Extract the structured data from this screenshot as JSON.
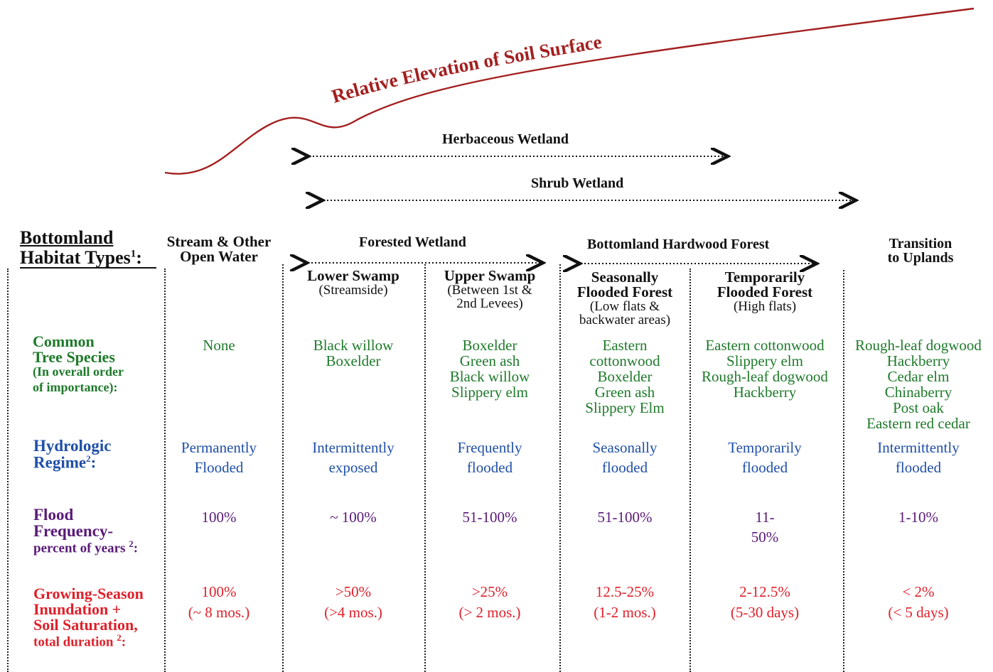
{
  "elevation_label": "Relative Elevation of Soil Surface",
  "spans": {
    "herbaceous": "Herbaceous Wetland",
    "shrub": "Shrub Wetland",
    "forested": "Forested Wetland",
    "bottomland_hardwood": "Bottomland Hardwood Forest",
    "transition": [
      "Transition",
      "to Uplands"
    ]
  },
  "header": {
    "title_line1": "Bottomland",
    "title_line2": "Habitat Types",
    "title_sup": "1",
    "title_suffix": ":"
  },
  "columns": [
    {
      "key": "stream",
      "title": [
        "Stream & Other",
        "Open Water"
      ],
      "subtitle": []
    },
    {
      "key": "lower_swamp",
      "title": [
        "Lower Swamp"
      ],
      "subtitle": [
        "(Streamside)"
      ]
    },
    {
      "key": "upper_swamp",
      "title": [
        "Upper Swamp"
      ],
      "subtitle": [
        "(Between 1st &",
        "2nd Levees)"
      ]
    },
    {
      "key": "seasonal",
      "title": [
        "Seasonally",
        "Flooded Forest"
      ],
      "subtitle": [
        "(Low flats &",
        "backwater areas)"
      ]
    },
    {
      "key": "temporary",
      "title": [
        "Temporarily",
        "Flooded Forest"
      ],
      "subtitle": [
        "(High flats)"
      ]
    },
    {
      "key": "transition",
      "title": [],
      "subtitle": []
    }
  ],
  "rows": {
    "species": {
      "label": [
        "Common",
        "Tree Species"
      ],
      "note": [
        "(In overall order",
        "of importance):"
      ],
      "values": [
        [
          "None"
        ],
        [
          "Black willow",
          "Boxelder"
        ],
        [
          "Boxelder",
          "Green ash",
          "Black willow",
          "Slippery elm"
        ],
        [
          "Eastern",
          "cottonwood",
          "Boxelder",
          "Green ash",
          "Slippery Elm"
        ],
        [
          "Eastern cottonwood",
          "Slippery elm",
          "Rough-leaf dogwood",
          "Hackberry"
        ],
        [
          "Rough-leaf dogwood",
          "Hackberry",
          "Cedar elm",
          "Chinaberry",
          "Post oak",
          "Eastern red cedar"
        ]
      ]
    },
    "hydro": {
      "label": [
        "Hydrologic",
        "Regime"
      ],
      "sup": "2",
      "values": [
        [
          "Permanently",
          "Flooded"
        ],
        [
          "Intermittently",
          "exposed"
        ],
        [
          "Frequently",
          "flooded"
        ],
        [
          "Seasonally",
          "flooded"
        ],
        [
          "Temporarily",
          "flooded"
        ],
        [
          "Intermittently",
          "flooded"
        ]
      ]
    },
    "flood": {
      "label": [
        "Flood",
        "Frequency-",
        "percent of years"
      ],
      "sup": "2",
      "values": [
        [
          "100%"
        ],
        [
          "~ 100%"
        ],
        [
          "51-100%"
        ],
        [
          "51-100%"
        ],
        [
          "11-",
          "50%"
        ],
        [
          "1-10%"
        ]
      ]
    },
    "growing": {
      "label": [
        "Growing-Season",
        "Inundation +",
        "Soil Saturation,",
        "total duration"
      ],
      "sup": "2",
      "values": [
        [
          "100%",
          "(~ 8 mos.)"
        ],
        [
          ">50%",
          "(>4 mos.)"
        ],
        [
          ">25%",
          "(> 2 mos.)"
        ],
        [
          "12.5-25%",
          "(1-2 mos.)"
        ],
        [
          "2-12.5%",
          "(5-30 days)"
        ],
        [
          "< 2%",
          "(< 5 days)"
        ]
      ]
    }
  },
  "colors": {
    "curve": "#a32020",
    "species": "#1e7a2a",
    "hydro": "#1f4fa8",
    "flood": "#5a1a78",
    "growing": "#e0202a"
  }
}
